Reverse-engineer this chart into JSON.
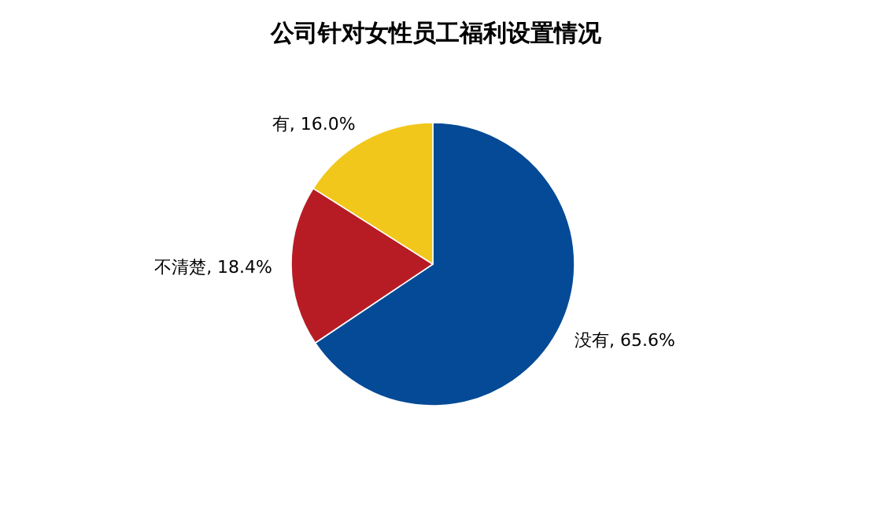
{
  "chart_data": {
    "type": "pie",
    "title": "公司针对女性员工福利设置情况",
    "categories": [
      "没有",
      "不清楚",
      "有"
    ],
    "values": [
      65.6,
      18.4,
      16.0
    ],
    "colors": [
      "#044a96",
      "#b71c25",
      "#f2c71c"
    ],
    "value_labels": [
      ", 65.6%",
      ", 18.4%",
      ", 16.0%"
    ]
  }
}
